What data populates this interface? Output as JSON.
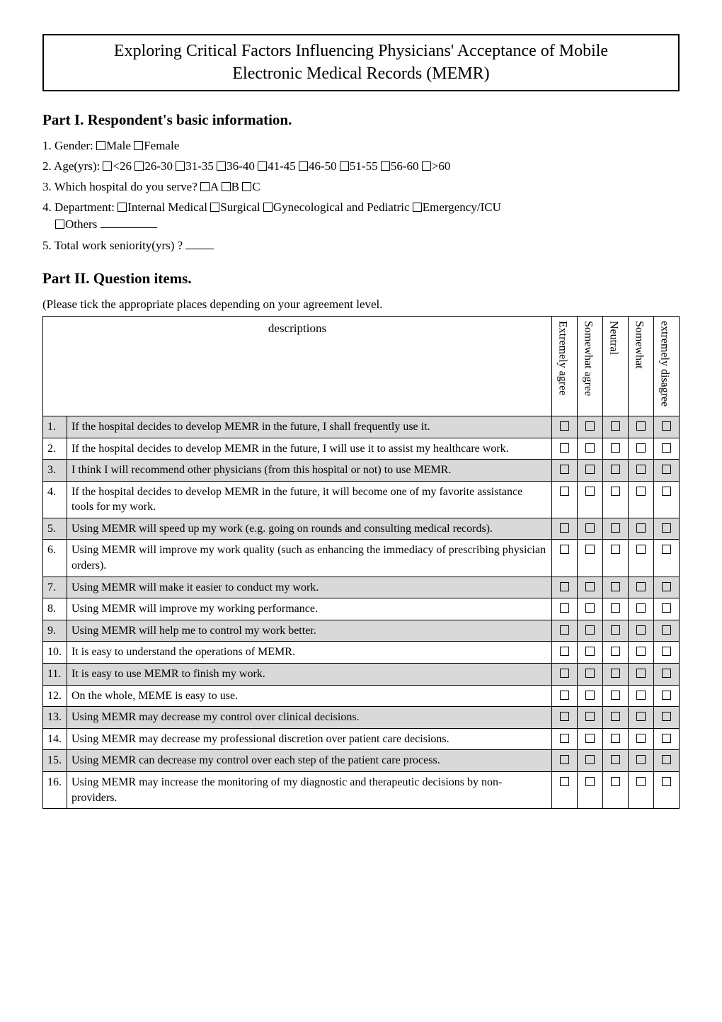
{
  "title_line1": "Exploring Critical Factors Influencing Physicians' Acceptance of Mobile",
  "title_line2": "Electronic Medical Records (MEMR)",
  "part1_heading": "Part I. Respondent's basic information.",
  "basic": {
    "q1_prefix": "1. Gender: ",
    "q1_opts": [
      "Male",
      "Female"
    ],
    "q2_prefix": "2. Age(yrs): ",
    "q2_opts": [
      "<26",
      "26-30",
      "31-35",
      "36-40",
      "41-45",
      "46-50",
      "51-55",
      "56-60",
      ">60"
    ],
    "q3_prefix": "3. Which hospital do you serve? ",
    "q3_opts": [
      "A",
      "B",
      "C"
    ],
    "q4_prefix": "4. Department: ",
    "q4_opts": [
      "Internal Medical",
      "Surgical",
      "Gynecological and Pediatric",
      "Emergency/ICU"
    ],
    "q4_others": "Others",
    "q5_prefix": "5. Total work seniority(yrs) ? "
  },
  "part2_heading": "Part II. Question items.",
  "part2_intro": "(Please tick the appropriate places depending on your agreement level.",
  "table": {
    "desc_head": "descriptions",
    "scale": [
      "Extremely agree",
      "Somewhat agree",
      "Neutral",
      "Somewhat",
      "extremely disagree"
    ],
    "col_width_desc_num": 34,
    "col_width_box": 36,
    "shaded_bg": "#d9d9d9",
    "rows": [
      {
        "n": "1.",
        "shade": true,
        "text": "If the hospital decides to develop MEMR in the future, I shall frequently use it."
      },
      {
        "n": "2.",
        "shade": false,
        "text": "If the hospital decides to develop MEMR in the future, I will use it to assist my healthcare work."
      },
      {
        "n": "3.",
        "shade": true,
        "text": "I think I will recommend other physicians (from this hospital or not) to use MEMR."
      },
      {
        "n": "4.",
        "shade": false,
        "text": "If the hospital decides to develop MEMR in the future, it will become one of my favorite assistance tools for my work."
      },
      {
        "n": "5.",
        "shade": true,
        "text": "Using MEMR will speed up my work (e.g. going on rounds and consulting medical records)."
      },
      {
        "n": "6.",
        "shade": false,
        "text": "Using MEMR will improve my work quality (such as enhancing the immediacy of prescribing physician orders)."
      },
      {
        "n": "7.",
        "shade": true,
        "text": "Using MEMR will make it easier to conduct my work."
      },
      {
        "n": "8.",
        "shade": false,
        "text": "Using MEMR will improve my working performance."
      },
      {
        "n": "9.",
        "shade": true,
        "text": "Using MEMR will help me to control my work better."
      },
      {
        "n": "10.",
        "shade": false,
        "text": "It is easy to understand the operations of MEMR."
      },
      {
        "n": "11.",
        "shade": true,
        "text": "It is easy to use MEMR to finish my work."
      },
      {
        "n": "12.",
        "shade": false,
        "text": "On the whole, MEME is easy to use."
      },
      {
        "n": "13.",
        "shade": true,
        "text": "Using MEMR may decrease my control over clinical decisions."
      },
      {
        "n": "14.",
        "shade": false,
        "text": "Using MEMR may decrease my professional discretion over patient care decisions."
      },
      {
        "n": "15.",
        "shade": true,
        "text": "Using MEMR can decrease my control over each step of the patient care process."
      },
      {
        "n": "16.",
        "shade": false,
        "text": "Using MEMR may increase the monitoring of my diagnostic and therapeutic decisions by non-providers."
      }
    ]
  }
}
